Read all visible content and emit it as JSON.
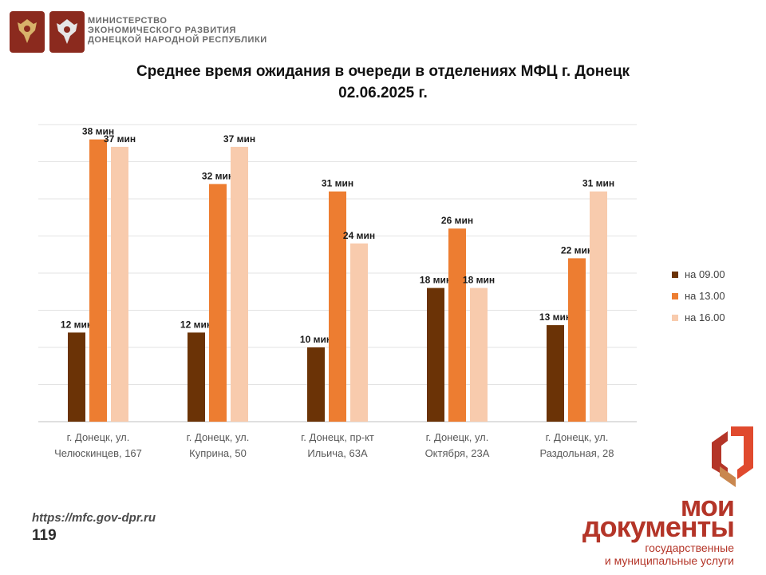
{
  "header": {
    "ministry_lines": [
      "МИНИСТЕРСТВО",
      "ЭКОНОМИЧЕСКОГО РАЗВИТИЯ",
      "ДОНЕЦКОЙ НАРОДНОЙ РЕСПУБЛИКИ"
    ]
  },
  "title": {
    "line1": "Среднее время ожидания в очереди в отделениях МФЦ г. Донецк",
    "line2": "02.06.2025 г."
  },
  "chart_data": {
    "type": "bar",
    "title": "Среднее время ожидания в очереди в отделениях МФЦ г. Донецк 02.06.2025 г.",
    "categories": [
      [
        "г. Донецк, ул.",
        "Челюскинцев, 167"
      ],
      [
        "г. Донецк, ул.",
        "Куприна, 50"
      ],
      [
        "г. Донецк, пр-кт",
        "Ильича, 63А"
      ],
      [
        "г. Донецк, ул.",
        "Октября, 23А"
      ],
      [
        "г. Донецк, ул.",
        "Раздольная, 28"
      ]
    ],
    "series": [
      {
        "name": "на 09.00",
        "color": "#6b3306",
        "values": [
          12,
          12,
          10,
          18,
          13
        ]
      },
      {
        "name": "на 13.00",
        "color": "#ed7d31",
        "values": [
          38,
          32,
          31,
          26,
          22
        ]
      },
      {
        "name": "на 16.00",
        "color": "#f8cbad",
        "values": [
          37,
          37,
          24,
          18,
          31
        ]
      }
    ],
    "value_suffix": " мин",
    "ylim": [
      0,
      40
    ],
    "grid": true,
    "legend_position": "right"
  },
  "footer": {
    "url": "https://mfc.gov-dpr.ru",
    "page_number": "119"
  },
  "brand": {
    "line1": "мои",
    "line2": "документы",
    "line3": "государственные",
    "line4": "и муниципальные услуги",
    "color": "#b43528"
  }
}
